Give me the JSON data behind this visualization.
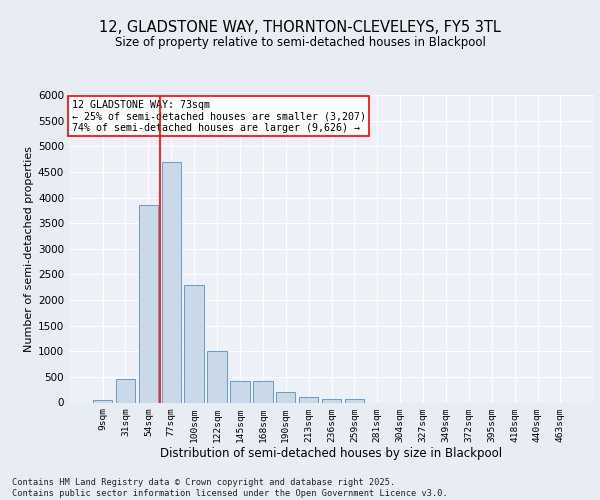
{
  "title1": "12, GLADSTONE WAY, THORNTON-CLEVELEYS, FY5 3TL",
  "title2": "Size of property relative to semi-detached houses in Blackpool",
  "xlabel": "Distribution of semi-detached houses by size in Blackpool",
  "ylabel": "Number of semi-detached properties",
  "bar_labels": [
    "9sqm",
    "31sqm",
    "54sqm",
    "77sqm",
    "100sqm",
    "122sqm",
    "145sqm",
    "168sqm",
    "190sqm",
    "213sqm",
    "236sqm",
    "259sqm",
    "281sqm",
    "304sqm",
    "327sqm",
    "349sqm",
    "372sqm",
    "395sqm",
    "418sqm",
    "440sqm",
    "463sqm"
  ],
  "bar_values": [
    50,
    450,
    3850,
    4700,
    2300,
    1000,
    420,
    420,
    200,
    100,
    70,
    70,
    0,
    0,
    0,
    0,
    0,
    0,
    0,
    0,
    0
  ],
  "bar_color": "#c9d9ea",
  "bar_edge_color": "#6a9cbf",
  "vline_x_index": 2.5,
  "vline_color": "red",
  "annotation_title": "12 GLADSTONE WAY: 73sqm",
  "annotation_line1": "← 25% of semi-detached houses are smaller (3,207)",
  "annotation_line2": "74% of semi-detached houses are larger (9,626) →",
  "annotation_box_color": "white",
  "annotation_box_edge": "red",
  "ylim": [
    0,
    6000
  ],
  "yticks": [
    0,
    500,
    1000,
    1500,
    2000,
    2500,
    3000,
    3500,
    4000,
    4500,
    5000,
    5500,
    6000
  ],
  "footer": "Contains HM Land Registry data © Crown copyright and database right 2025.\nContains public sector information licensed under the Open Government Licence v3.0.",
  "bg_color": "#e8edf4",
  "plot_bg_color": "#edf1f7"
}
